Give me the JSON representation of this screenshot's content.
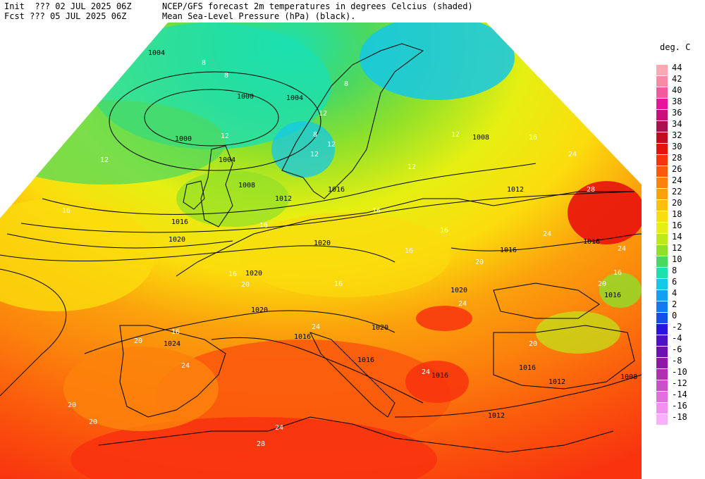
{
  "header": {
    "line1_left": "Init  ??? 02 JUL 2025 06Z",
    "line2_left": "Fcst ??? 05 JUL 2025 06Z",
    "line1_right": "NCEP/GFS forecast 2m temperatures in degrees Celcius (shaded)",
    "line2_right": "Mean Sea-Level Pressure (hPa) (black)."
  },
  "legend": {
    "title": "deg. C",
    "entries": [
      {
        "label": "44",
        "color": "#f9a8b4"
      },
      {
        "label": "42",
        "color": "#f78aa6"
      },
      {
        "label": "40",
        "color": "#f15a9c"
      },
      {
        "label": "38",
        "color": "#e6149e"
      },
      {
        "label": "36",
        "color": "#c80f7a"
      },
      {
        "label": "34",
        "color": "#a81050"
      },
      {
        "label": "32",
        "color": "#c40a1e"
      },
      {
        "label": "30",
        "color": "#e8120c"
      },
      {
        "label": "28",
        "color": "#f8330e"
      },
      {
        "label": "26",
        "color": "#fb5a0c"
      },
      {
        "label": "24",
        "color": "#fb820c"
      },
      {
        "label": "22",
        "color": "#fba10c"
      },
      {
        "label": "20",
        "color": "#fbc00c"
      },
      {
        "label": "18",
        "color": "#fbdc0c"
      },
      {
        "label": "16",
        "color": "#e6ef12"
      },
      {
        "label": "14",
        "color": "#bfe81a"
      },
      {
        "label": "12",
        "color": "#8ee02a"
      },
      {
        "label": "10",
        "color": "#4cd860"
      },
      {
        "label": "8",
        "color": "#1ce0b0"
      },
      {
        "label": "6",
        "color": "#14c8e8"
      },
      {
        "label": "4",
        "color": "#14a0f0"
      },
      {
        "label": "2",
        "color": "#1478f0"
      },
      {
        "label": "0",
        "color": "#1450e8"
      },
      {
        "label": "-2",
        "color": "#2814e0"
      },
      {
        "label": "-4",
        "color": "#5010c8"
      },
      {
        "label": "-6",
        "color": "#7010b0"
      },
      {
        "label": "-8",
        "color": "#9018a8"
      },
      {
        "label": "-10",
        "color": "#b030b0"
      },
      {
        "label": "-12",
        "color": "#c850c8"
      },
      {
        "label": "-14",
        "color": "#e070e0"
      },
      {
        "label": "-16",
        "color": "#f090f0"
      },
      {
        "label": "-18",
        "color": "#f8b0f8"
      }
    ]
  },
  "isobar_labels": [
    "1004",
    "1000",
    "1004",
    "1000",
    "1004",
    "1008",
    "1012",
    "1016",
    "1020",
    "1020",
    "1020",
    "1020",
    "1016",
    "1024",
    "1016",
    "1008",
    "1012",
    "1016",
    "1016",
    "1020",
    "1020",
    "1016",
    "1016",
    "1012",
    "1008",
    "1012",
    "1016",
    "1016",
    "1008"
  ],
  "temp_labels": [
    "8",
    "8",
    "8",
    "12",
    "12",
    "12",
    "8",
    "12",
    "12",
    "16",
    "16",
    "16",
    "16",
    "16",
    "16",
    "16",
    "20",
    "20",
    "20",
    "20",
    "24",
    "24",
    "24",
    "24",
    "28",
    "24",
    "20",
    "20",
    "28",
    "24",
    "24",
    "24",
    "12",
    "16",
    "16",
    "12",
    "20",
    "16"
  ]
}
